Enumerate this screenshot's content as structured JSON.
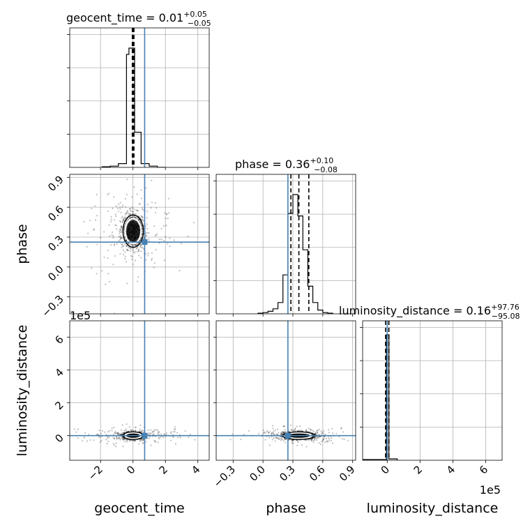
{
  "chart_data": {
    "type": "corner",
    "parameters": [
      "geocent_time",
      "phase",
      "luminosity_distance"
    ],
    "injection": {
      "geocent_time": 0.72,
      "phase": 0.25,
      "luminosity_distance": 0.0
    },
    "colors": {
      "truth": "#4682b4",
      "hist": "#000000",
      "grid": "#b0b0b0",
      "samples": "#000000"
    },
    "grid": true,
    "titles": [
      {
        "name": "geocent_time",
        "median": "0.01",
        "upper": "+0.05",
        "lower": "−0.05",
        "prefix": "geocent_time = 0.01"
      },
      {
        "name": "phase",
        "median": "0.36",
        "upper": "+0.10",
        "lower": "−0.08",
        "prefix": "phase = 0.36"
      },
      {
        "name": "luminosity_distance",
        "median": "0.16",
        "upper": "+97.76",
        "lower": "−95.08",
        "prefix": "luminosity_distance = 0.16"
      }
    ],
    "axes": {
      "geocent_time": {
        "range": [
          -3.9,
          4.7
        ],
        "ticks": [
          -2,
          0,
          2,
          4
        ],
        "tick_labels": [
          "−2",
          "0",
          "2",
          "4"
        ],
        "label": "geocent_time"
      },
      "phase": {
        "range": [
          -0.47,
          0.93
        ],
        "ticks": [
          -0.3,
          0.0,
          0.3,
          0.6,
          0.9
        ],
        "tick_labels": [
          "−0.3",
          "0.0",
          "0.3",
          "0.6",
          "0.9"
        ],
        "label": "phase"
      },
      "luminosity_distance": {
        "range": [
          -1.5,
          7.0
        ],
        "ticks": [
          0,
          2,
          4,
          6
        ],
        "tick_labels": [
          "0",
          "2",
          "4",
          "6"
        ],
        "label": "luminosity_distance",
        "offset_text": "1e5"
      }
    },
    "histograms": {
      "geocent_time": {
        "edges": [
          -1.9,
          -1.4,
          -0.9,
          -0.4,
          -0.25,
          0.1,
          0.5,
          1.0,
          1.5,
          2.0
        ],
        "counts": [
          0.005,
          0.01,
          0.03,
          0.9,
          0.95,
          0.28,
          0.03,
          0.01,
          0.0
        ],
        "ymax": 1.0,
        "quantiles": [
          -0.04,
          0.01,
          0.06
        ]
      },
      "phase": {
        "edges": [
          -0.05,
          0.0,
          0.05,
          0.1,
          0.15,
          0.2,
          0.25,
          0.3,
          0.35,
          0.4,
          0.45,
          0.5,
          0.55,
          0.6,
          0.65,
          0.7
        ],
        "counts": [
          0.005,
          0.01,
          0.02,
          0.04,
          0.09,
          0.31,
          0.8,
          0.95,
          0.78,
          0.51,
          0.22,
          0.09,
          0.03,
          0.01,
          0.005
        ],
        "ymax": 1.0,
        "quantiles": [
          0.28,
          0.36,
          0.46
        ]
      },
      "luminosity_distance": {
        "edges": [
          -0.3,
          -0.05,
          0.05,
          0.3,
          0.5
        ],
        "counts": [
          0.01,
          0.95,
          0.95,
          0.01
        ],
        "ymax": 1.0,
        "quantiles": [
          -0.1,
          0.0,
          0.1
        ],
        "bar_edges": [
          -0.05,
          0.1
        ]
      }
    }
  }
}
